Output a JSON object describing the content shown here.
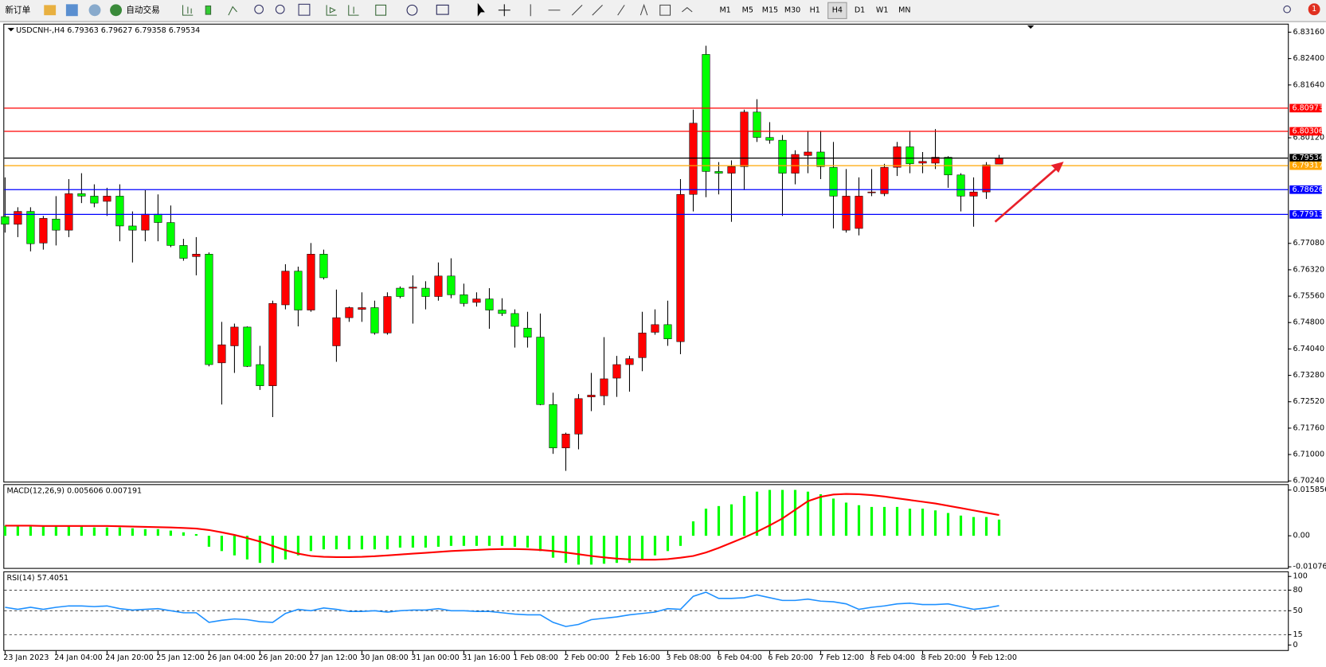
{
  "toolbar": {
    "new_order": "新订单",
    "auto_trading": "自动交易",
    "timeframes": [
      "M1",
      "M5",
      "M15",
      "M30",
      "H1",
      "H4",
      "D1",
      "W1",
      "MN"
    ],
    "active_timeframe": "H4",
    "notifications": "1"
  },
  "chart_data": [
    {
      "type": "candlestick",
      "header": "USDCNH-,H4  6.79363 6.79627 6.79358 6.79534",
      "up_color": "#ff0000",
      "down_color": "#00ff00",
      "wick_color": "#000000",
      "categories": [
        "23 Jan 2023",
        null,
        null,
        null,
        "24 Jan 04:00",
        null,
        null,
        null,
        "24 Jan 20:00",
        null,
        null,
        null,
        "25 Jan 12:00",
        null,
        null,
        null,
        "26 Jan 04:00",
        null,
        null,
        null,
        "26 Jan 20:00",
        null,
        null,
        null,
        "27 Jan 12:00",
        null,
        null,
        null,
        "30 Jan 08:00",
        null,
        null,
        null,
        "31 Jan 00:00",
        null,
        null,
        null,
        "31 Jan 16:00",
        null,
        null,
        null,
        "1 Feb 08:00",
        null,
        null,
        null,
        "2 Feb 00:00",
        null,
        null,
        null,
        "2 Feb 16:00",
        null,
        null,
        null,
        "3 Feb 08:00",
        null,
        null,
        null,
        "6 Feb 04:00",
        null,
        null,
        null,
        "6 Feb 20:00",
        null,
        null,
        null,
        "7 Feb 12:00",
        null,
        null,
        null,
        "8 Feb 04:00",
        null,
        null,
        null,
        "8 Feb 20:00",
        null,
        null,
        null,
        "9 Feb 12:00",
        null,
        null
      ],
      "open": [
        6.7785,
        6.7763,
        6.78,
        6.7709,
        6.7778,
        6.7746,
        6.7851,
        6.7844,
        6.7829,
        6.7844,
        6.7758,
        6.7746,
        6.7792,
        6.7768,
        6.7702,
        6.767,
        6.7677,
        6.7364,
        6.7413,
        6.7467,
        6.7359,
        6.7298,
        6.7531,
        6.7628,
        6.7516,
        6.7677,
        6.7413,
        6.7494,
        6.7518,
        6.7523,
        6.745,
        6.7579,
        6.7579,
        6.7579,
        6.7555,
        6.7614,
        6.756,
        6.7538,
        6.7548,
        6.7516,
        6.7506,
        6.7464,
        6.7438,
        6.7244,
        6.7119,
        6.7159,
        6.7266,
        6.7269,
        6.732,
        6.7359,
        6.7379,
        6.7452,
        6.7474,
        6.7425,
        6.7849,
        6.8252,
        6.7915,
        6.791,
        6.7929,
        6.8086,
        6.8013,
        6.8005,
        6.791,
        6.7961,
        6.7971,
        6.7927,
        6.7746,
        6.7751,
        6.7854,
        6.7851,
        6.7927,
        6.7986,
        6.7939,
        6.7939,
        6.7956,
        6.7905,
        6.7844,
        6.7856,
        6.79363
      ],
      "high": [
        6.7898,
        6.7812,
        6.7812,
        6.7787,
        6.7844,
        6.7893,
        6.791,
        6.7878,
        6.7868,
        6.7878,
        6.78,
        6.7861,
        6.7849,
        6.7817,
        6.7721,
        6.7726,
        6.7682,
        6.7482,
        6.7477,
        6.7469,
        6.7413,
        6.7543,
        6.7648,
        6.7641,
        6.7709,
        6.769,
        6.7575,
        6.7526,
        6.7567,
        6.7543,
        6.7567,
        6.7584,
        6.7616,
        6.7599,
        6.7653,
        6.7665,
        6.7592,
        6.7567,
        6.7579,
        6.755,
        6.7518,
        6.7511,
        6.7506,
        6.7278,
        6.7163,
        6.7274,
        6.7335,
        6.7438,
        6.7384,
        6.7384,
        6.7511,
        6.7518,
        6.7543,
        6.7893,
        6.8093,
        6.8277,
        6.7942,
        6.7947,
        6.8093,
        6.8123,
        6.8057,
        6.802,
        6.7976,
        6.8032,
        6.8032,
        6.8,
        6.7922,
        6.7898,
        6.7922,
        6.7937,
        6.8,
        6.8032,
        6.7971,
        6.8037,
        6.7959,
        6.791,
        6.7898,
        6.7942,
        6.79627
      ],
      "low": [
        6.7739,
        6.7726,
        6.7685,
        6.769,
        6.7702,
        6.7726,
        6.7824,
        6.7812,
        6.7787,
        6.7714,
        6.7653,
        6.7714,
        6.7714,
        6.7697,
        6.7658,
        6.7616,
        6.7354,
        6.7244,
        6.7335,
        6.7352,
        6.7286,
        6.7208,
        6.7518,
        6.7469,
        6.7511,
        6.7604,
        6.7367,
        6.7482,
        6.7482,
        6.7445,
        6.7445,
        6.755,
        6.7477,
        6.7518,
        6.7543,
        6.755,
        6.7526,
        6.7526,
        6.7462,
        6.7499,
        6.7408,
        6.7408,
        6.7242,
        6.7102,
        6.7053,
        6.7115,
        6.7225,
        6.7242,
        6.7266,
        6.7281,
        6.734,
        6.7445,
        6.7413,
        6.7389,
        6.78,
        6.7841,
        6.7849,
        6.777,
        6.7861,
        6.8,
        6.7995,
        6.7787,
        6.7878,
        6.791,
        6.7893,
        6.7751,
        6.7739,
        6.7731,
        6.7844,
        6.7844,
        6.7902,
        6.791,
        6.791,
        6.7922,
        6.7868,
        6.78,
        6.7756,
        6.7836,
        6.79358
      ],
      "close": [
        6.7763,
        6.78,
        6.7707,
        6.778,
        6.7746,
        6.7851,
        6.7844,
        6.7824,
        6.7844,
        6.7758,
        6.7746,
        6.7792,
        6.7768,
        6.7702,
        6.7665,
        6.7677,
        6.7359,
        6.7416,
        6.7467,
        6.7354,
        6.7298,
        6.7535,
        6.7628,
        6.7516,
        6.7677,
        6.7609,
        6.7494,
        6.7523,
        6.7523,
        6.745,
        6.7555,
        6.7555,
        6.7582,
        6.7555,
        6.7614,
        6.756,
        6.7535,
        6.7548,
        6.7516,
        6.7506,
        6.7469,
        6.7438,
        6.7244,
        6.7119,
        6.7159,
        6.7261,
        6.7271,
        6.7318,
        6.7359,
        6.7376,
        6.745,
        6.7474,
        6.7433,
        6.7849,
        6.8054,
        6.7915,
        6.791,
        6.7929,
        6.8086,
        6.8013,
        6.8005,
        6.791,
        6.7964,
        6.7971,
        6.7929,
        6.7844,
        6.7844,
        6.7844,
        6.7856,
        6.7927,
        6.7986,
        6.7937,
        6.7944,
        6.7956,
        6.7905,
        6.7844,
        6.7856,
        6.7934,
        6.79534
      ],
      "ylim": [
        6.7022,
        6.8338
      ],
      "yticks": [
        {
          "value": 6.8316,
          "label": "6.83160"
        },
        {
          "value": 6.824,
          "label": "6.82400"
        },
        {
          "value": 6.8164,
          "label": "6.81640"
        },
        {
          "value": 6.8012,
          "label": "6.80120"
        },
        {
          "value": 6.7708,
          "label": "6.77080"
        },
        {
          "value": 6.7632,
          "label": "6.76320"
        },
        {
          "value": 6.7556,
          "label": "6.75560"
        },
        {
          "value": 6.748,
          "label": "6.74800"
        },
        {
          "value": 6.7404,
          "label": "6.74040"
        },
        {
          "value": 6.7328,
          "label": "6.73280"
        },
        {
          "value": 6.7252,
          "label": "6.72520"
        },
        {
          "value": 6.7176,
          "label": "6.71760"
        },
        {
          "value": 6.71,
          "label": "6.71000"
        },
        {
          "value": 6.7024,
          "label": "6.70240"
        }
      ],
      "levels": [
        {
          "value": 6.80973,
          "color": "#ff0000"
        },
        {
          "value": 6.80306,
          "color": "#ff0000"
        },
        {
          "value": 6.79534,
          "color": "#000000"
        },
        {
          "value": 6.79317,
          "color": "#ffa500"
        },
        {
          "value": 6.78626,
          "color": "#0000ff"
        },
        {
          "value": 6.77913,
          "color": "#0000ff"
        }
      ]
    },
    {
      "type": "macd",
      "header": "MACD(12,26,9) 0.005606 0.007191",
      "histogram_color": "#00ff00",
      "signal_color": "#ff0000",
      "histogram": [
        0.0035,
        0.0035,
        0.0032,
        0.0032,
        0.0032,
        0.0032,
        0.0032,
        0.0029,
        0.0029,
        0.0029,
        0.0026,
        0.0023,
        0.0023,
        0.0018,
        0.0012,
        0.0006,
        -0.0038,
        -0.0053,
        -0.0068,
        -0.0082,
        -0.0094,
        -0.0094,
        -0.0082,
        -0.0068,
        -0.0053,
        -0.0047,
        -0.0047,
        -0.0047,
        -0.0047,
        -0.0047,
        -0.0047,
        -0.0041,
        -0.0041,
        -0.0041,
        -0.0038,
        -0.0035,
        -0.0035,
        -0.0035,
        -0.0035,
        -0.0035,
        -0.0038,
        -0.0041,
        -0.0053,
        -0.0076,
        -0.0094,
        -0.01,
        -0.01,
        -0.0097,
        -0.0094,
        -0.0094,
        -0.0082,
        -0.0068,
        -0.0053,
        -0.0035,
        0.005,
        0.0094,
        0.0103,
        0.0109,
        0.0138,
        0.0153,
        0.0159,
        0.0159,
        0.0159,
        0.0153,
        0.0144,
        0.0129,
        0.0115,
        0.0106,
        0.01,
        0.01,
        0.01,
        0.0094,
        0.0094,
        0.0088,
        0.0079,
        0.007,
        0.0065,
        0.0065,
        0.005606
      ],
      "signal": [
        0.0035,
        0.0035,
        0.0035,
        0.0034,
        0.0034,
        0.0034,
        0.0034,
        0.0034,
        0.0034,
        0.0033,
        0.0032,
        0.0031,
        0.003,
        0.0029,
        0.0027,
        0.0025,
        0.002,
        0.0012,
        0.0003,
        -0.0008,
        -0.002,
        -0.0035,
        -0.005,
        -0.0062,
        -0.007,
        -0.0073,
        -0.0074,
        -0.0074,
        -0.0073,
        -0.0071,
        -0.0068,
        -0.0065,
        -0.0062,
        -0.0059,
        -0.0056,
        -0.0053,
        -0.0051,
        -0.0049,
        -0.0047,
        -0.0046,
        -0.0046,
        -0.0047,
        -0.0049,
        -0.0053,
        -0.0058,
        -0.0064,
        -0.007,
        -0.0075,
        -0.0079,
        -0.0082,
        -0.0083,
        -0.0083,
        -0.0081,
        -0.0076,
        -0.007,
        -0.0058,
        -0.0042,
        -0.0024,
        -0.0006,
        0.0014,
        0.0036,
        0.006,
        0.009,
        0.012,
        0.0135,
        0.0143,
        0.0145,
        0.0144,
        0.0141,
        0.0136,
        0.013,
        0.0124,
        0.0118,
        0.0112,
        0.0104,
        0.0096,
        0.0088,
        0.008,
        0.007191
      ],
      "ylim": [
        -0.01116,
        0.0176
      ],
      "yticks": [
        0.015856,
        {
          "value": 0,
          "label": "0.00"
        },
        -0.01076
      ]
    },
    {
      "type": "line",
      "header": "RSI(14) 57.4051",
      "color": "#1e90ff",
      "values": [
        55,
        52,
        55,
        52,
        55,
        57,
        57,
        56,
        57,
        53,
        51,
        52,
        53,
        50,
        47,
        47,
        33,
        36,
        38,
        37,
        34,
        33,
        46,
        52,
        50,
        54,
        52,
        49,
        49,
        50,
        48,
        50,
        51,
        51,
        53,
        50,
        50,
        49,
        49,
        47,
        45,
        44,
        44,
        33,
        27,
        30,
        37,
        39,
        41,
        44,
        46,
        48,
        53,
        52,
        71,
        77,
        68,
        68,
        69,
        73,
        69,
        65,
        65,
        67,
        64,
        63,
        60,
        52,
        55,
        57,
        60,
        61,
        59,
        59,
        60,
        56,
        52,
        54,
        57.4051
      ],
      "ylim": [
        -7.4,
        106.2
      ],
      "yticks": [
        100,
        80,
        50,
        15,
        0
      ],
      "levels": [
        80,
        50,
        15
      ]
    }
  ]
}
